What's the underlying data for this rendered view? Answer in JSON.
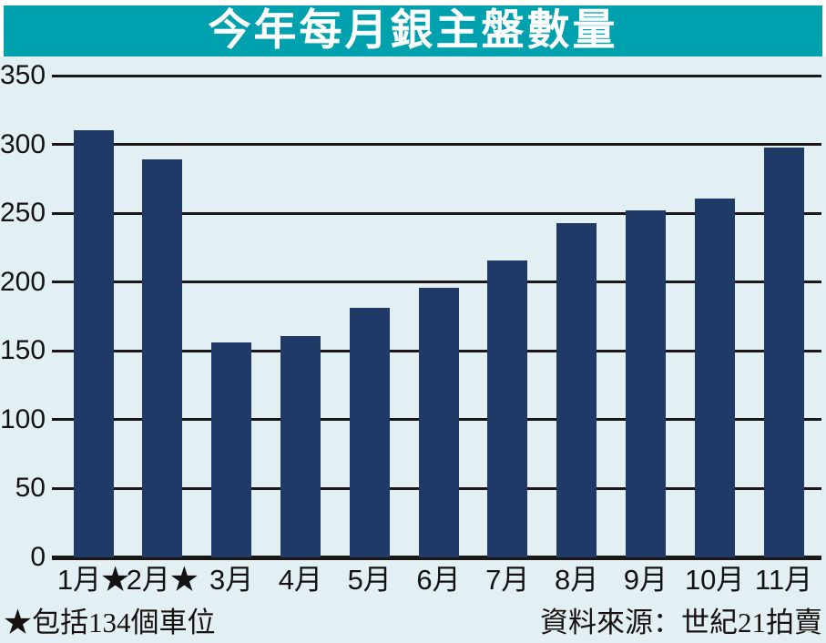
{
  "title": "今年每月銀主盤數量",
  "footnote": "★包括134個車位",
  "source": "資料來源：世紀21拍賣",
  "colors": {
    "title_bg": "#00a1ae",
    "chart_bg": "#e2f0f4",
    "bar": "#1f3a66",
    "grid": "#1c1717",
    "text": "#121212"
  },
  "chart_data": {
    "type": "bar",
    "title": "今年每月銀主盤數量",
    "categories": [
      "1月★",
      "2月★",
      "3月",
      "4月",
      "5月",
      "6月",
      "7月",
      "8月",
      "9月",
      "10月",
      "11月"
    ],
    "values": [
      310,
      289,
      156,
      161,
      181,
      196,
      216,
      243,
      252,
      261,
      298
    ],
    "xlabel": "",
    "ylabel": "",
    "ylim": [
      0,
      350
    ],
    "yticks": [
      0,
      50,
      100,
      150,
      200,
      250,
      300,
      350
    ],
    "grid": true,
    "legend": false,
    "bar_color": "#1f3a66",
    "background_color": "#e2f0f4"
  }
}
